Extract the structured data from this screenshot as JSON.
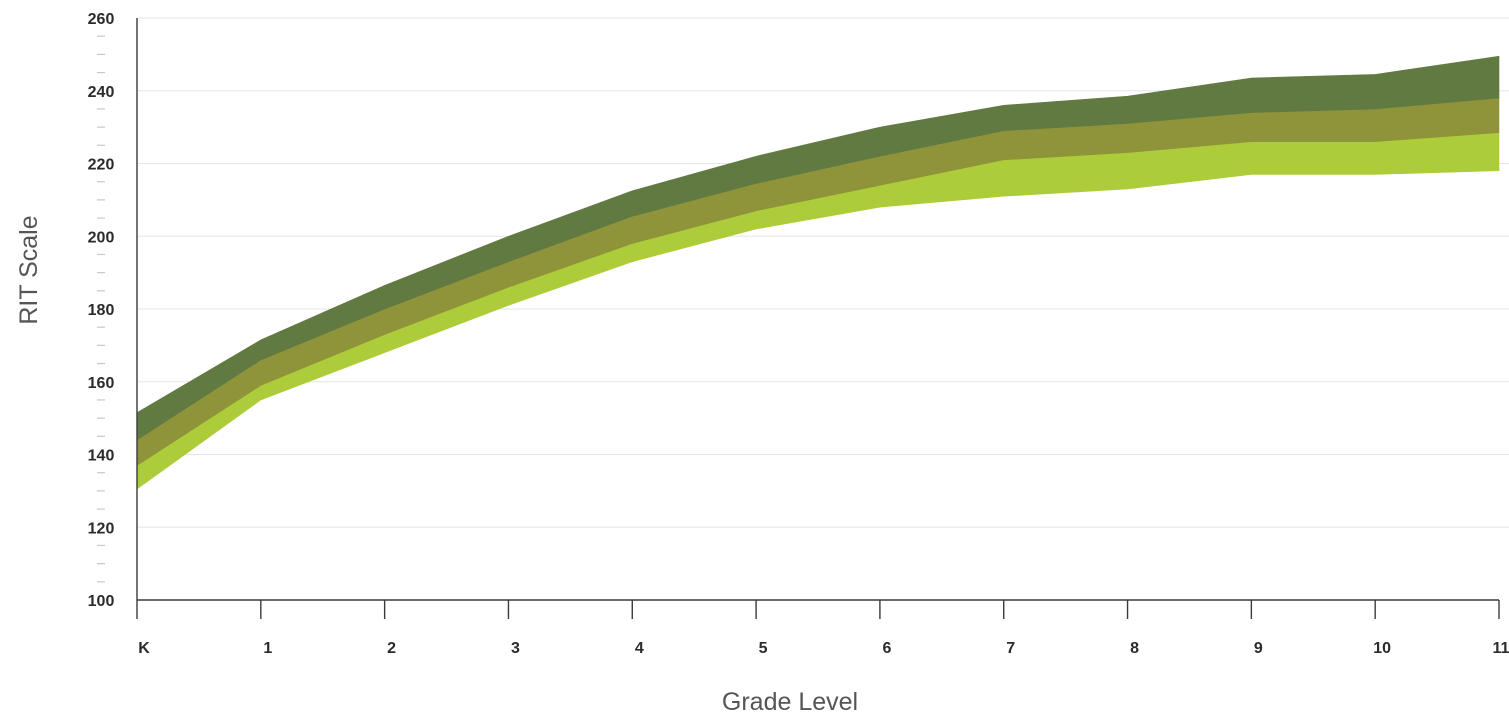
{
  "chart_data": {
    "type": "area",
    "title": "",
    "xlabel": "Grade Level",
    "ylabel": "RIT Scale",
    "ylim": [
      100,
      260
    ],
    "yticks": [
      100,
      120,
      140,
      160,
      180,
      200,
      220,
      240,
      260
    ],
    "y_minor_step": 5,
    "grid": true,
    "legend": "none",
    "categories": [
      "K",
      "1",
      "2",
      "3",
      "4",
      "5",
      "6",
      "7",
      "8",
      "9",
      "10",
      "11"
    ],
    "boundaries": {
      "low": [
        130.5,
        155,
        168,
        181,
        193,
        202,
        208,
        211,
        213,
        217,
        217,
        218
      ],
      "q1": [
        137,
        159,
        173,
        186,
        198,
        207,
        214,
        221,
        223,
        226,
        226,
        228.5
      ],
      "median": [
        144,
        166,
        180,
        193,
        205.5,
        214.5,
        222,
        229,
        231,
        234,
        235,
        238
      ],
      "high": [
        151.5,
        171.5,
        186.5,
        200,
        212.5,
        222,
        230,
        236,
        238.5,
        243.5,
        244.5,
        249.5
      ]
    },
    "bands": [
      {
        "from": "low",
        "to": "q1",
        "color": "#adcc3a"
      },
      {
        "from": "q1",
        "to": "median",
        "color": "#8f943a"
      },
      {
        "from": "median",
        "to": "high",
        "color": "#617a42"
      }
    ]
  }
}
